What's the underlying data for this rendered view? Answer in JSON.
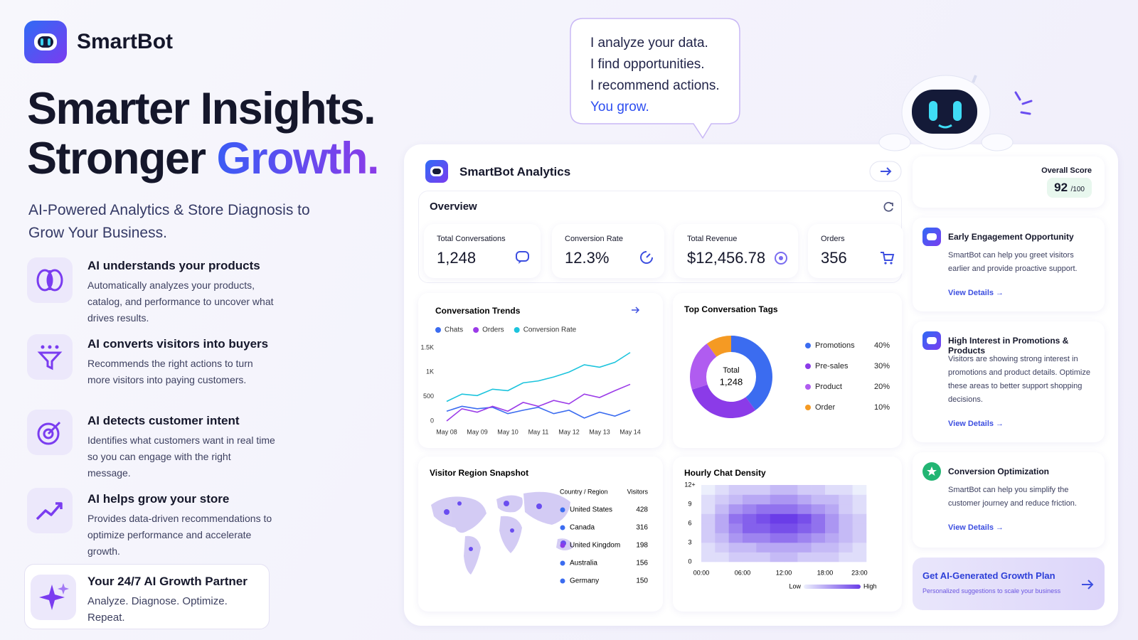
{
  "brand": {
    "name": "SmartBot"
  },
  "hero": {
    "title_line1": "Smarter Insights.",
    "title_line2": "Stronger",
    "title_highlight": "Growth.",
    "subtitle": "AI-Powered Analytics & Store Diagnosis to Grow Your Business."
  },
  "features": [
    {
      "title": "AI understands your products",
      "text": "Automatically analyzes your products, catalog, and performance to uncover what drives results."
    },
    {
      "title": "AI converts visitors into buyers",
      "text": "Recommends the right actions to turn more visitors into paying customers."
    },
    {
      "title": "AI detects customer intent",
      "text": "Identifies what customers want in real time so you can engage with the right message."
    },
    {
      "title": "AI helps grow your store",
      "text": "Provides data-driven recommendations to optimize performance and accelerate growth."
    }
  ],
  "partner": {
    "title": "Your 24/7 AI Growth Partner",
    "text": "Analyze. Diagnose. Optimize. Repeat."
  },
  "speech": {
    "lines": [
      "I analyze your data.",
      "I find opportunities.",
      "I recommend actions."
    ],
    "highlight": "You grow."
  },
  "dashboard": {
    "title": "SmartBot Analytics",
    "overview": "Overview",
    "kpis": [
      {
        "label": "Total Conversations",
        "value": "1,248"
      },
      {
        "label": "Conversion Rate",
        "value": "12.3%"
      },
      {
        "label": "Total Revenue",
        "value": "$12,456.78"
      },
      {
        "label": "Orders",
        "value": "356"
      }
    ]
  },
  "score": {
    "label": "Overall Score",
    "value": "92",
    "suffix": "/100"
  },
  "insights": [
    {
      "title": "Early Engagement Opportunity",
      "text": "SmartBot can help you greet visitors earlier and provide proactive support.",
      "link": "View Details"
    },
    {
      "title": "High Interest in Promotions & Products",
      "text": "Visitors are showing strong interest in promotions and product details. Optimize these areas to better support shopping decisions.",
      "link": "View Details"
    },
    {
      "title": "Conversion Optimization",
      "text": "SmartBot can help you simplify the customer journey and reduce friction.",
      "link": "View Details"
    }
  ],
  "cta": {
    "title": "Get AI-Generated Growth Plan",
    "text": "Personalized suggestions to scale your business"
  },
  "chart_data": [
    {
      "type": "line",
      "title": "Conversation Trends",
      "categories": [
        "May 08",
        null,
        "May 09",
        null,
        "May 10",
        null,
        "May 11",
        null,
        "May 12",
        null,
        "May 13",
        null,
        "May 14"
      ],
      "series": [
        {
          "name": "Chats",
          "color": "#3b6cf0",
          "values": [
            200,
            300,
            250,
            280,
            150,
            220,
            280,
            150,
            220,
            60,
            180,
            100,
            220
          ]
        },
        {
          "name": "Orders",
          "color": "#9b3be8",
          "values": [
            0,
            250,
            180,
            300,
            200,
            380,
            300,
            420,
            350,
            550,
            480,
            620,
            750
          ]
        },
        {
          "name": "Conversion Rate",
          "color": "#1cc4dd",
          "values": [
            400,
            550,
            520,
            650,
            620,
            780,
            820,
            900,
            1000,
            1150,
            1100,
            1200,
            1400
          ]
        }
      ],
      "ylim": [
        0,
        1600
      ],
      "yticks": [
        0,
        500,
        {
          "value": 1000,
          "label": "1K"
        },
        {
          "value": 1500,
          "label": "1.5K"
        }
      ],
      "grid": false
    },
    {
      "type": "pie",
      "title": "Top Conversation Tags",
      "donut": true,
      "center_label": "Total",
      "center_value": "1,248",
      "categories": [
        "Promotions",
        "Pre-sales",
        "Product",
        "Order"
      ],
      "values": [
        40,
        30,
        20,
        10
      ],
      "value_labels": [
        "40%",
        "30%",
        "20%",
        "10%"
      ],
      "colors": [
        "#3b6cf0",
        "#8b3be8",
        "#b05cf0",
        "#f59a23"
      ]
    },
    {
      "type": "heatmap",
      "title": "Hourly Chat Density",
      "xlim": [
        0,
        24
      ],
      "ylim": [
        0,
        12
      ],
      "xticks": [
        {
          "value": 0,
          "label": "00:00"
        },
        {
          "value": 6,
          "label": "06:00"
        },
        {
          "value": 12,
          "label": "12:00"
        },
        {
          "value": 18,
          "label": "18:00"
        },
        {
          "value": 23,
          "label": "23:00"
        }
      ],
      "yticks": [
        0,
        3,
        6,
        9,
        {
          "value": 12,
          "label": "12+"
        }
      ],
      "clim": [
        0,
        10
      ],
      "color_low": "#eceffc",
      "color_high": "#6a3de8",
      "legend": {
        "low": "Low",
        "high": "High"
      },
      "values": [
        [
          1,
          1,
          2,
          2,
          2,
          3,
          3,
          2,
          2,
          2,
          1,
          1
        ],
        [
          1,
          2,
          3,
          3,
          4,
          4,
          4,
          4,
          3,
          3,
          2,
          1
        ],
        [
          2,
          3,
          5,
          6,
          6,
          7,
          7,
          6,
          5,
          4,
          3,
          2
        ],
        [
          2,
          4,
          6,
          8,
          8,
          9,
          9,
          8,
          7,
          5,
          3,
          2
        ],
        [
          2,
          4,
          7,
          8,
          9,
          10,
          10,
          9,
          7,
          5,
          3,
          2
        ],
        [
          1,
          3,
          5,
          6,
          7,
          7,
          7,
          6,
          5,
          4,
          2,
          1
        ],
        [
          1,
          2,
          3,
          4,
          4,
          5,
          5,
          4,
          3,
          3,
          2,
          1
        ],
        [
          0,
          1,
          2,
          2,
          2,
          3,
          3,
          2,
          2,
          1,
          1,
          0
        ]
      ]
    }
  ],
  "region_table": {
    "title": "Visitor Region Snapshot",
    "columns": [
      "Country / Region",
      "Visitors"
    ],
    "rows": [
      [
        "United States",
        "428"
      ],
      [
        "Canada",
        "316"
      ],
      [
        "United Kingdom",
        "198"
      ],
      [
        "Australia",
        "156"
      ],
      [
        "Germany",
        "150"
      ]
    ],
    "dot_colors": [
      "#3b6cf0",
      "#3b6cf0",
      "#8b3be8",
      "#3b6cf0",
      "#3b6cf0"
    ]
  }
}
